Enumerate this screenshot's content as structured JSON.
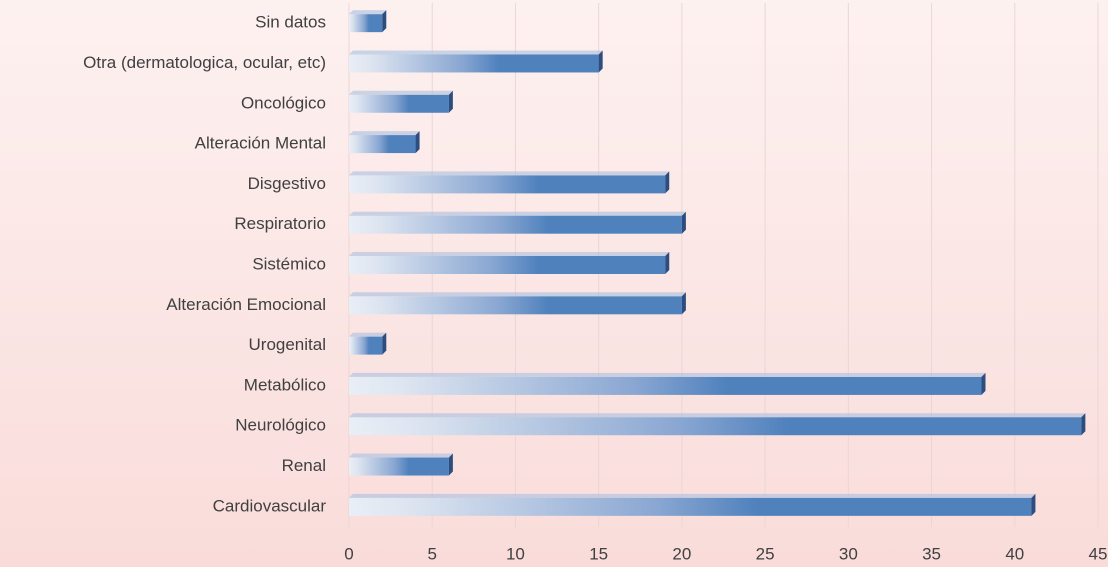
{
  "chart_data": {
    "type": "barh",
    "categories": [
      "Cardiovascular",
      "Renal",
      "Neurológico",
      "Metabólico",
      "Urogenital",
      "Alteración Emocional",
      "Sistémico",
      "Respiratorio",
      "Disgestivo",
      "Alteración Mental",
      "Oncológico",
      "Otra (dermatologica, ocular, etc)",
      "Sin datos"
    ],
    "values": [
      41,
      6,
      44,
      38,
      2,
      20,
      19,
      20,
      19,
      4,
      6,
      15,
      2
    ],
    "color": "#4f81bd",
    "xlim": [
      0,
      45
    ],
    "xticks": [
      0,
      5,
      10,
      15,
      20,
      25,
      30,
      35,
      40,
      45
    ],
    "grid": true
  }
}
